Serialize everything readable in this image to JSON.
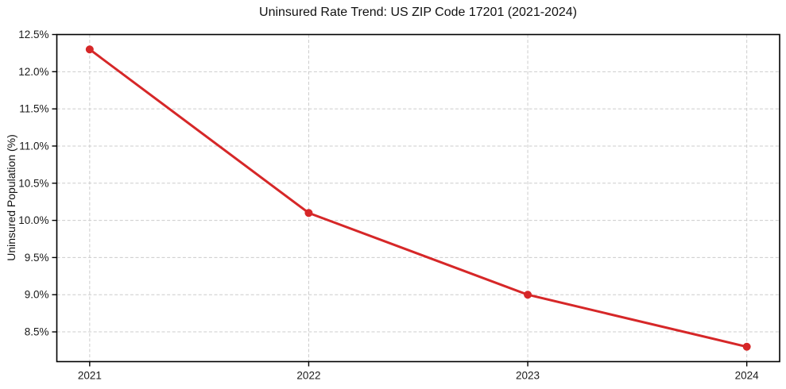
{
  "chart_data": {
    "type": "line",
    "title": "Uninsured Rate Trend: US ZIP Code 17201 (2021-2024)",
    "xlabel": "",
    "ylabel": "Uninsured Population (%)",
    "x": [
      2021,
      2022,
      2023,
      2024
    ],
    "values": [
      12.3,
      10.1,
      9.0,
      8.3
    ],
    "x_tick_labels": [
      "2021",
      "2022",
      "2023",
      "2024"
    ],
    "y_tick_values": [
      8.5,
      9.0,
      9.5,
      10.0,
      10.5,
      11.0,
      11.5,
      12.0,
      12.5
    ],
    "y_tick_labels": [
      "8.5%",
      "9.0%",
      "9.5%",
      "10.0%",
      "10.5%",
      "11.0%",
      "11.5%",
      "12.0%",
      "12.5%"
    ],
    "xlim": [
      2020.85,
      2024.15
    ],
    "ylim": [
      8.1,
      12.5
    ],
    "grid": true,
    "grid_style": "dashed",
    "legend": "none",
    "line_color": "#d62728",
    "marker": "circle",
    "grid_color": "#cccccc",
    "axis_color": "#000000",
    "text_color": "#1a1a1a",
    "background_color": "#ffffff"
  }
}
